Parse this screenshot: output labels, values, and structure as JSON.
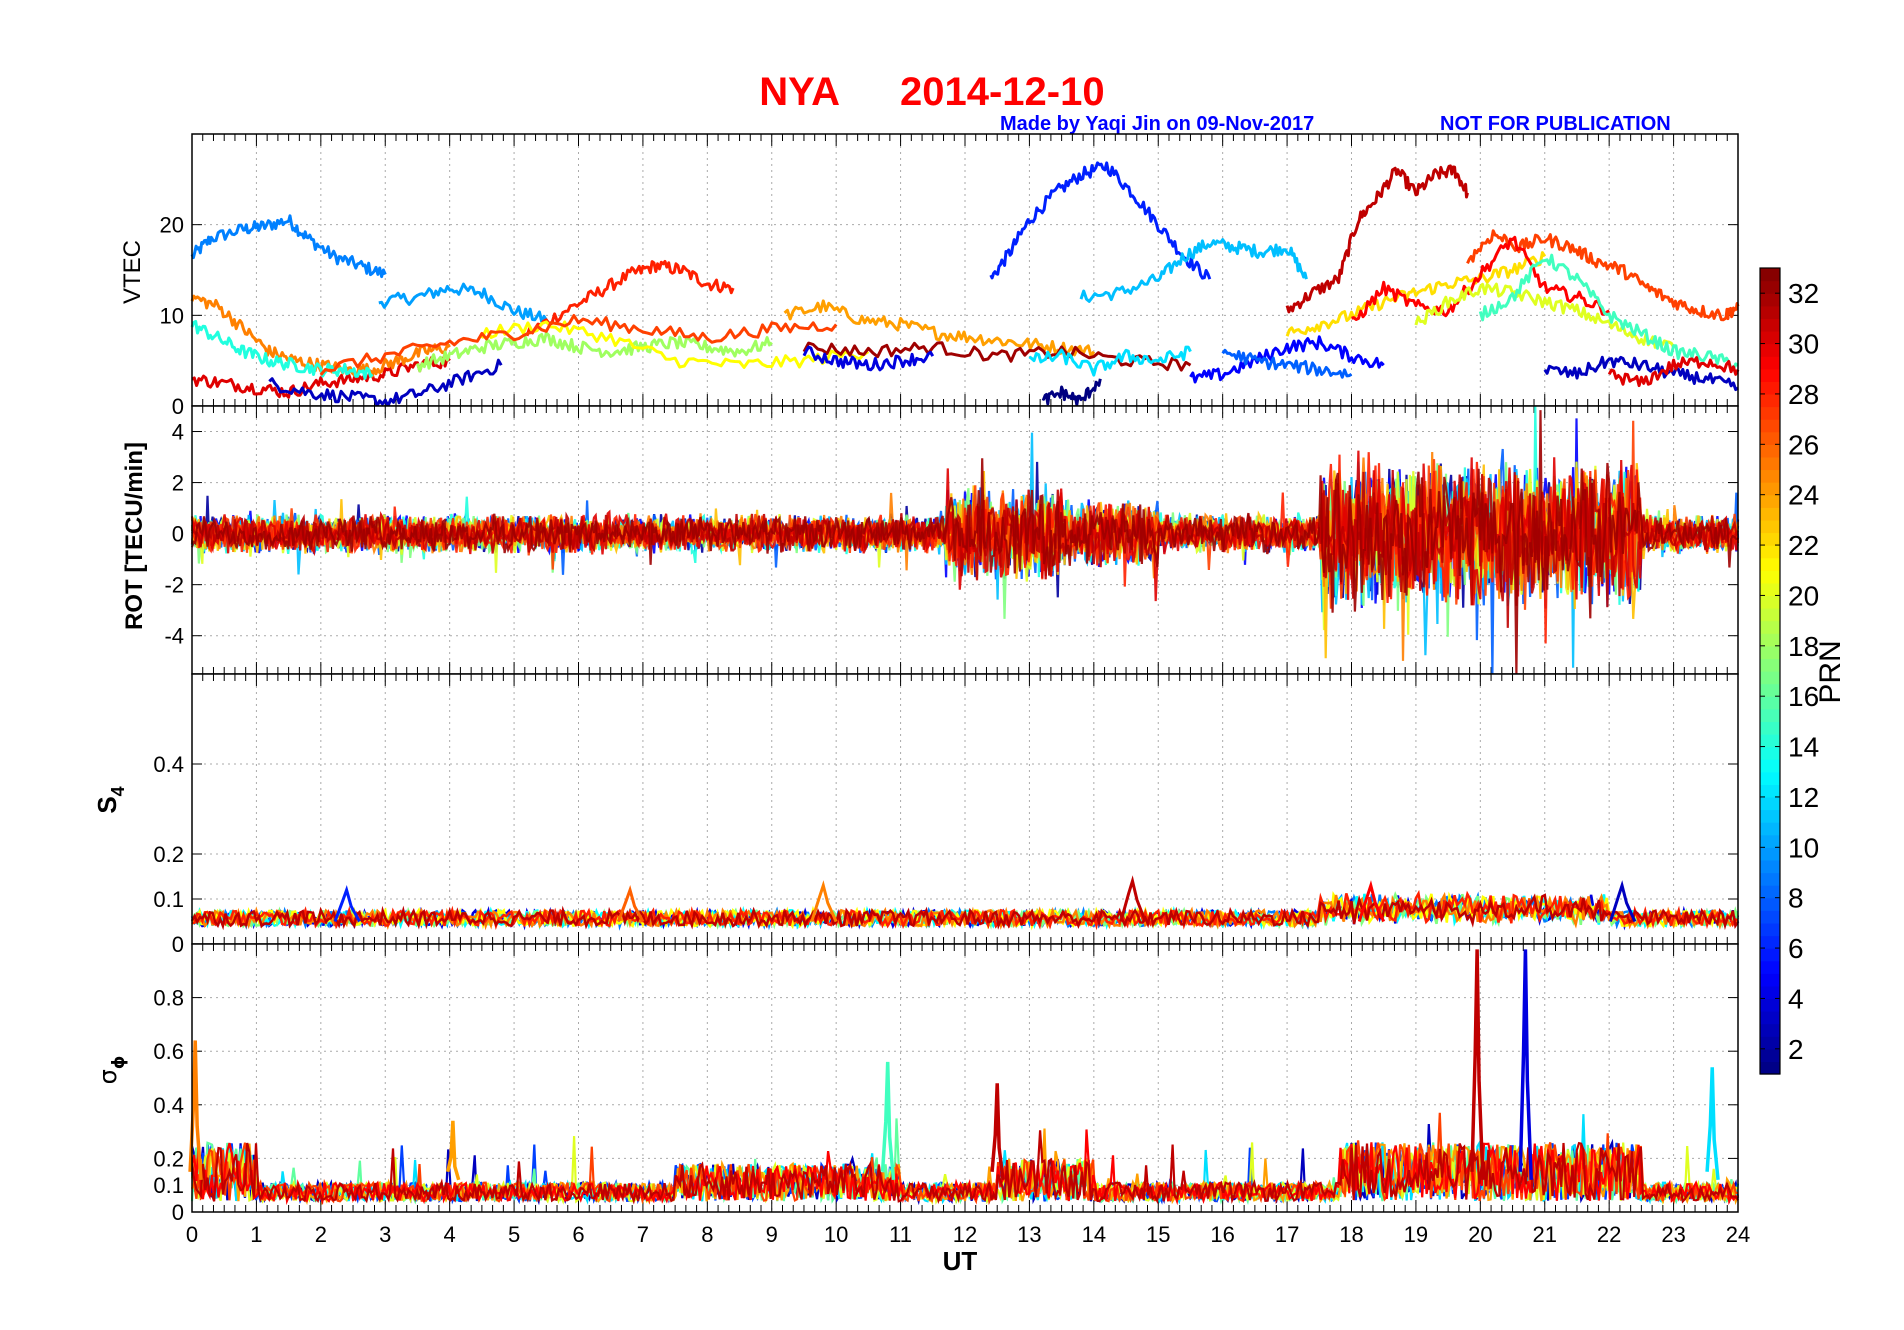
{
  "header": {
    "station": "NYA",
    "date": "2014-12-10",
    "credit": "Made by Yaqi Jin on 09-Nov-2017",
    "notice": "NOT FOR PUBLICATION",
    "title_color": "#ff0000",
    "note_color": "#0000ff"
  },
  "chart_data": [
    {
      "type": "line",
      "id": "vtec",
      "ylabel": "VTEC",
      "xlim": [
        0,
        24
      ],
      "ylim": [
        0,
        30
      ],
      "yticks": [
        0,
        10,
        20
      ],
      "grid": true,
      "series": [
        {
          "prn": 9,
          "x": [
            0,
            0.3,
            0.8,
            1.1,
            1.5,
            1.8,
            2.2,
            2.6,
            3.0
          ],
          "y": [
            16.5,
            18.5,
            19.5,
            19.8,
            20.5,
            18.5,
            16.5,
            15.5,
            14.5
          ]
        },
        {
          "prn": 10,
          "x": [
            2.9,
            3.5,
            4.0,
            4.5,
            5.0,
            5.5
          ],
          "y": [
            11.5,
            12.0,
            13.0,
            12.5,
            10.5,
            9.5
          ]
        },
        {
          "prn": 28,
          "x": [
            5.2,
            5.8,
            6.3,
            6.8,
            7.2,
            7.6,
            8.0,
            8.4
          ],
          "y": [
            8.0,
            10.5,
            12.5,
            14.5,
            15.5,
            15.0,
            13.5,
            13.0
          ]
        },
        {
          "prn": 6,
          "x": [
            12.4,
            12.7,
            13.0,
            13.4,
            13.8,
            14.2,
            14.6,
            15.0,
            15.4,
            15.8
          ],
          "y": [
            14.0,
            17.0,
            20.5,
            23.5,
            25.5,
            26.5,
            23.5,
            20.0,
            16.5,
            14.0
          ]
        },
        {
          "prn": 11,
          "x": [
            13.8,
            14.4,
            15.0,
            15.4,
            15.8,
            16.2,
            16.6,
            17.0,
            17.3
          ],
          "y": [
            12.0,
            12.5,
            14.0,
            16.5,
            18.0,
            17.5,
            17.0,
            17.5,
            14.0
          ]
        },
        {
          "prn": 31,
          "x": [
            17.0,
            17.4,
            17.8,
            18.1,
            18.4,
            18.7,
            19.0,
            19.3,
            19.6,
            19.8
          ],
          "y": [
            10.5,
            12.5,
            14.0,
            20.5,
            23.0,
            26.0,
            23.5,
            25.5,
            26.0,
            23.5
          ]
        },
        {
          "prn": 24,
          "x": [
            9.2,
            9.8,
            10.4,
            11.0,
            11.6,
            12.2,
            12.8,
            13.4,
            14.0
          ],
          "y": [
            10.0,
            11.0,
            9.5,
            9.0,
            8.0,
            7.5,
            7.0,
            6.5,
            6.0
          ]
        },
        {
          "prn": 30,
          "x": [
            0,
            0.5,
            1.0,
            1.5,
            2.0,
            2.5,
            3.0,
            3.5,
            4.0
          ],
          "y": [
            3.0,
            2.5,
            2.0,
            1.5,
            2.5,
            3.0,
            3.5,
            4.5,
            5.0
          ]
        },
        {
          "prn": 3,
          "x": [
            1.2,
            1.8,
            2.4,
            3.0,
            3.6,
            4.2,
            4.8
          ],
          "y": [
            2.5,
            1.5,
            1.0,
            0.5,
            1.5,
            3.0,
            4.5
          ]
        },
        {
          "prn": 25,
          "x": [
            0,
            0.4,
            0.8,
            1.2,
            1.6,
            2.0,
            2.4,
            2.8,
            3.2,
            3.6,
            4.0
          ],
          "y": [
            12.0,
            11.0,
            8.5,
            6.0,
            5.0,
            4.5,
            4.0,
            4.0,
            5.0,
            6.0,
            6.5
          ]
        },
        {
          "prn": 14,
          "x": [
            0,
            0.4,
            0.8,
            1.2,
            1.6,
            2.0,
            2.4,
            2.8
          ],
          "y": [
            9.0,
            7.5,
            6.0,
            5.0,
            4.5,
            4.0,
            4.0,
            3.5
          ]
        },
        {
          "prn": 18,
          "x": [
            3.5,
            4.0,
            4.5,
            5.0,
            5.5,
            6.0,
            6.5,
            7.0,
            7.5,
            8.0,
            8.5,
            9.0
          ],
          "y": [
            4.5,
            5.5,
            6.5,
            7.0,
            7.5,
            6.5,
            6.0,
            6.5,
            7.0,
            6.5,
            6.0,
            7.0
          ]
        },
        {
          "prn": 21,
          "x": [
            4.5,
            5.5,
            6.5,
            7.5,
            8.5,
            9.5,
            10.5
          ],
          "y": [
            8.0,
            9.0,
            7.5,
            5.0,
            4.5,
            5.0,
            6.0
          ]
        },
        {
          "prn": 27,
          "x": [
            2.0,
            3.0,
            4.0,
            5.0,
            6.0,
            7.0,
            8.0,
            9.0,
            10.0
          ],
          "y": [
            4.0,
            5.5,
            7.0,
            8.0,
            9.5,
            8.5,
            7.5,
            8.5,
            9.0
          ]
        },
        {
          "prn": 32,
          "x": [
            9.5,
            10.5,
            11.5,
            12.5,
            13.5,
            14.5,
            15.5
          ],
          "y": [
            6.5,
            6.0,
            6.5,
            5.5,
            6.0,
            5.0,
            4.5
          ]
        },
        {
          "prn": 4,
          "x": [
            9.5,
            10.0,
            10.5,
            11.0,
            11.5
          ],
          "y": [
            6.0,
            5.0,
            4.5,
            5.0,
            5.5
          ]
        },
        {
          "prn": 5,
          "x": [
            15.5,
            16.0,
            16.5,
            17.0,
            17.5,
            18.0,
            18.5
          ],
          "y": [
            3.0,
            3.5,
            5.0,
            6.5,
            7.0,
            5.5,
            4.5
          ]
        },
        {
          "prn": 22,
          "x": [
            17.0,
            17.5,
            18.0,
            18.5,
            19.0,
            19.5,
            20.0,
            20.5,
            21.0
          ],
          "y": [
            8.0,
            9.0,
            10.0,
            11.5,
            12.5,
            13.5,
            14.0,
            15.0,
            16.5
          ]
        },
        {
          "prn": 27,
          "x": [
            19.8,
            20.2,
            20.6,
            21.0,
            21.4,
            21.8,
            22.2,
            22.6,
            23.0,
            23.4,
            23.8,
            24.0
          ],
          "y": [
            16.0,
            19.0,
            17.5,
            18.5,
            17.5,
            16.0,
            15.0,
            13.0,
            11.5,
            10.5,
            10.0,
            11.0
          ]
        },
        {
          "prn": 29,
          "x": [
            18.0,
            18.5,
            19.0,
            19.5,
            20.0,
            20.5,
            21.0,
            21.5,
            22.0
          ],
          "y": [
            9.0,
            13.0,
            11.0,
            10.5,
            14.5,
            18.5,
            13.0,
            12.0,
            10.5
          ]
        },
        {
          "prn": 20,
          "x": [
            19.0,
            19.5,
            20.0,
            20.5,
            21.0,
            21.5,
            22.0,
            22.5,
            23.0
          ],
          "y": [
            9.0,
            11.5,
            13.0,
            12.5,
            11.5,
            10.5,
            9.0,
            7.5,
            6.5
          ]
        },
        {
          "prn": 15,
          "x": [
            20.0,
            20.5,
            21.0,
            21.5,
            22.0,
            22.5,
            23.0,
            23.5,
            24.0
          ],
          "y": [
            10.0,
            12.0,
            16.5,
            14.0,
            10.0,
            8.0,
            6.0,
            5.5,
            4.5
          ]
        },
        {
          "prn": 3,
          "x": [
            21.0,
            21.5,
            22.0,
            22.5,
            23.0,
            23.5,
            24.0
          ],
          "y": [
            4.0,
            3.5,
            5.0,
            4.5,
            3.5,
            3.0,
            2.0
          ]
        },
        {
          "prn": 30,
          "x": [
            22.0,
            22.5,
            23.0,
            23.5,
            24.0
          ],
          "y": [
            3.5,
            2.5,
            4.5,
            5.0,
            4.0
          ]
        },
        {
          "prn": 1,
          "x": [
            13.2,
            13.5,
            13.8,
            14.1
          ],
          "y": [
            0.5,
            1.5,
            0.5,
            3.0
          ]
        },
        {
          "prn": 12,
          "x": [
            13.0,
            13.5,
            14.0,
            14.5,
            15.0,
            15.5
          ],
          "y": [
            5.0,
            5.5,
            4.0,
            5.5,
            5.0,
            6.0
          ]
        },
        {
          "prn": 8,
          "x": [
            16.0,
            16.5,
            17.0,
            17.5,
            18.0
          ],
          "y": [
            6.0,
            5.0,
            4.5,
            4.0,
            3.5
          ]
        }
      ]
    },
    {
      "type": "line",
      "id": "rot",
      "ylabel": "ROT [TECU/min]",
      "xlim": [
        0,
        24
      ],
      "ylim": [
        -5.5,
        5
      ],
      "yticks": [
        -4,
        -2,
        0,
        2,
        4
      ],
      "grid": true
    },
    {
      "type": "line",
      "id": "s4",
      "ylabel": "S",
      "ylabel_sub": "4",
      "xlim": [
        0,
        24
      ],
      "ylim": [
        0,
        0.6
      ],
      "yticks": [
        0,
        0.1,
        0.2,
        0.4
      ],
      "grid": true,
      "peaks": [
        {
          "x": 2.4,
          "y": 0.12,
          "prn": 6
        },
        {
          "x": 6.8,
          "y": 0.12,
          "prn": 26
        },
        {
          "x": 9.8,
          "y": 0.13,
          "prn": 25
        },
        {
          "x": 14.6,
          "y": 0.14,
          "prn": 31
        },
        {
          "x": 18.3,
          "y": 0.13,
          "prn": 29
        },
        {
          "x": 22.2,
          "y": 0.13,
          "prn": 3
        }
      ]
    },
    {
      "type": "line",
      "id": "sigma_phi",
      "ylabel": "σ",
      "ylabel_sub": "ϕ",
      "xlabel": "UT",
      "xlim": [
        0,
        24
      ],
      "xticks": [
        0,
        1,
        2,
        3,
        4,
        5,
        6,
        7,
        8,
        9,
        10,
        11,
        12,
        13,
        14,
        15,
        16,
        17,
        18,
        19,
        20,
        21,
        22,
        23,
        24
      ],
      "ylim": [
        0,
        1
      ],
      "yticks": [
        0,
        0.1,
        0.2,
        0.4,
        0.6,
        0.8
      ],
      "grid": true,
      "peaks": [
        {
          "x": 0.05,
          "y": 0.64,
          "prn": 25
        },
        {
          "x": 4.05,
          "y": 0.34,
          "prn": 24
        },
        {
          "x": 10.8,
          "y": 0.56,
          "prn": 15
        },
        {
          "x": 12.5,
          "y": 0.48,
          "prn": 31
        },
        {
          "x": 19.95,
          "y": 0.98,
          "prn": 31
        },
        {
          "x": 20.7,
          "y": 0.98,
          "prn": 4
        },
        {
          "x": 23.6,
          "y": 0.54,
          "prn": 12
        }
      ]
    }
  ],
  "colorbar": {
    "label": "PRN",
    "ticks": [
      2,
      4,
      6,
      8,
      10,
      12,
      14,
      16,
      18,
      20,
      22,
      24,
      26,
      28,
      30,
      32
    ],
    "min": 1,
    "max": 33
  }
}
